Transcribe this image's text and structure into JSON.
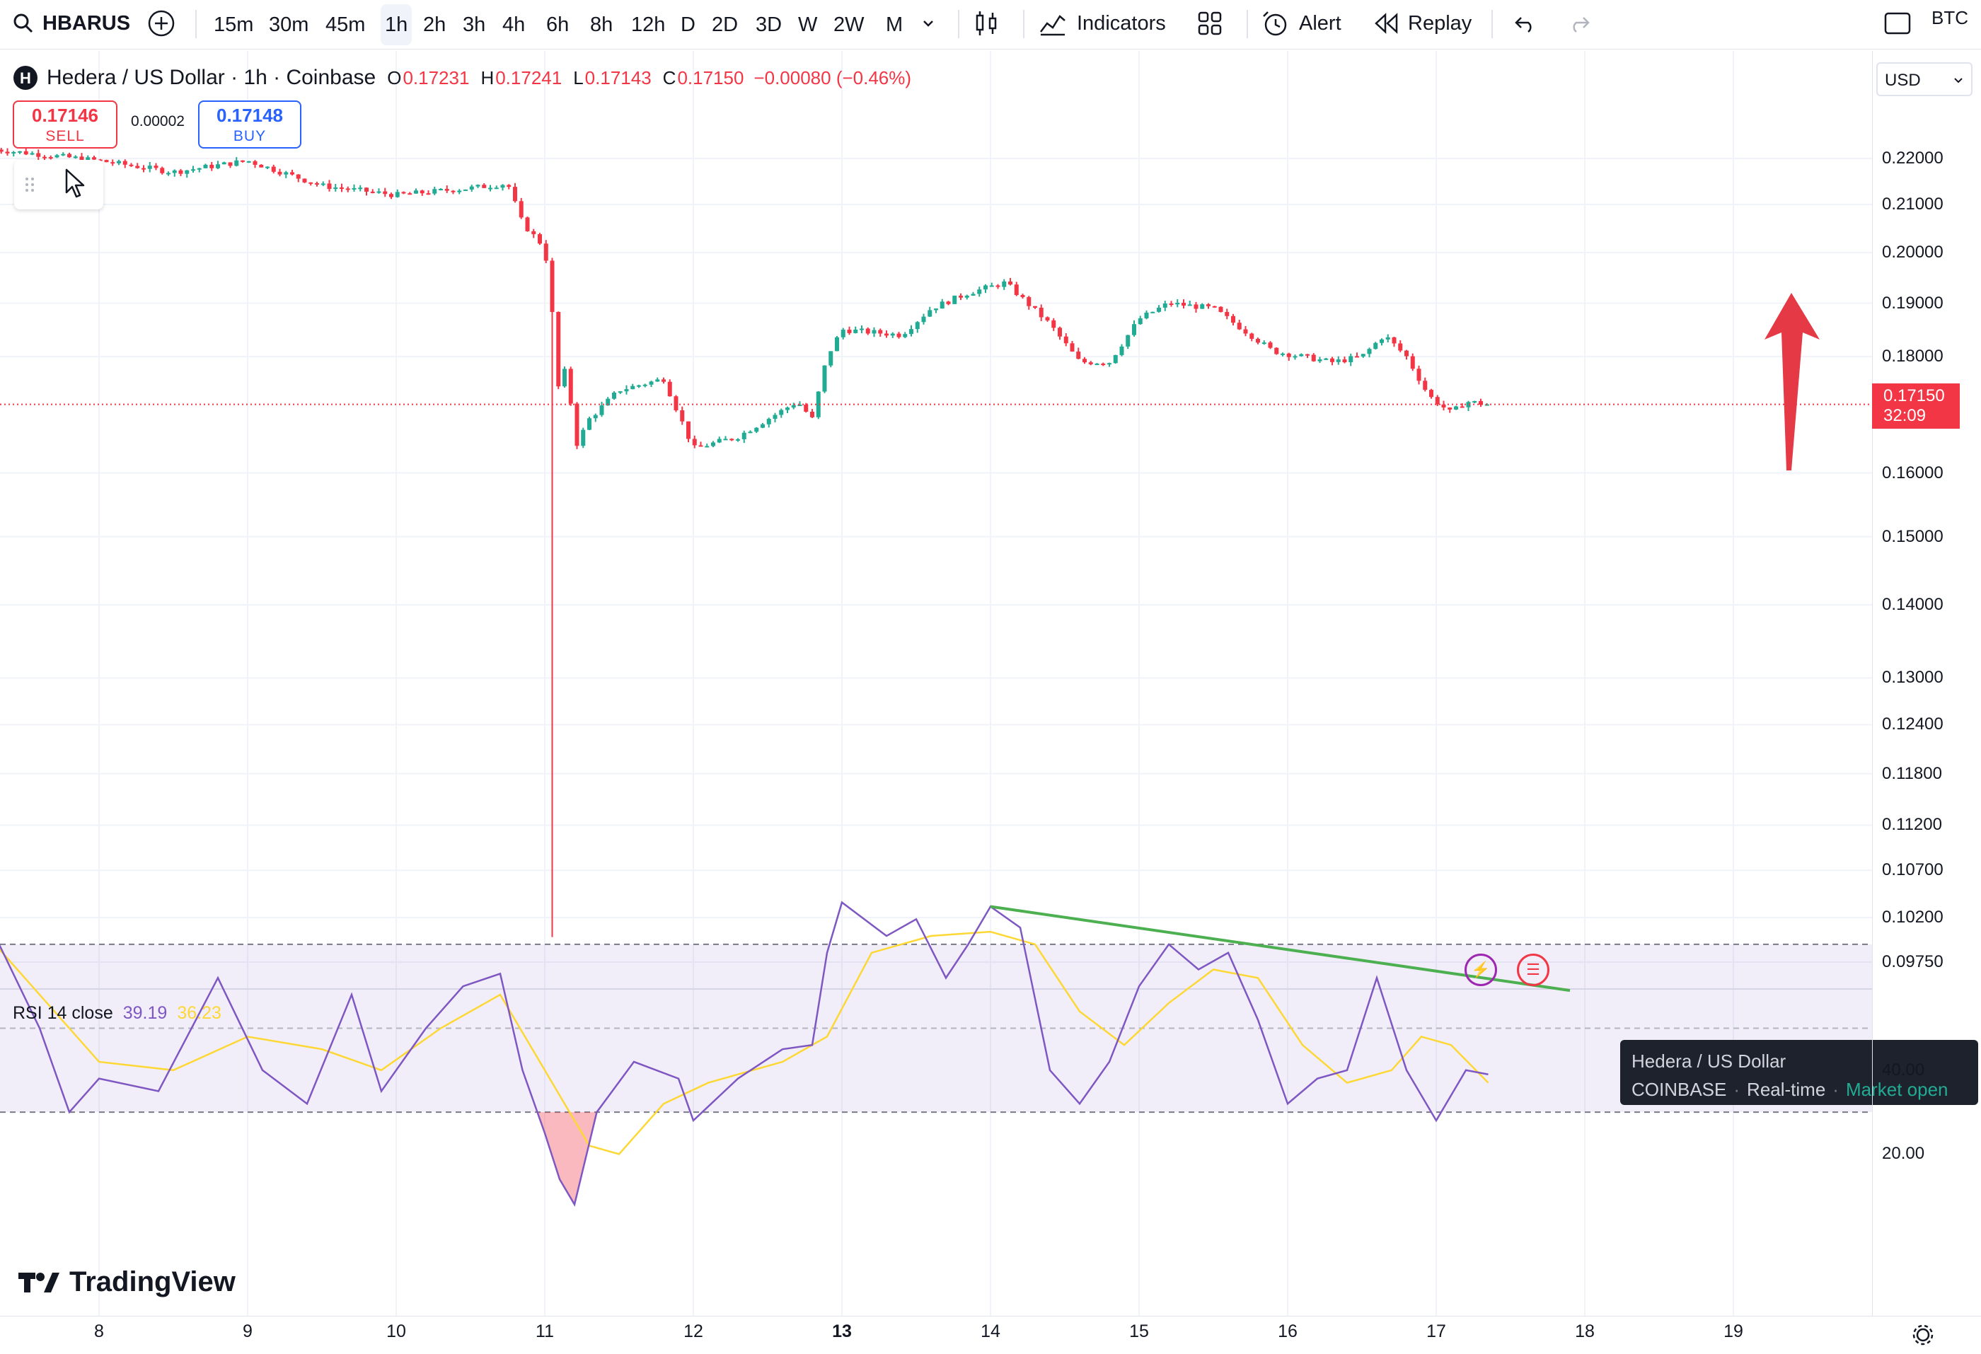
{
  "toolbar": {
    "symbol": "HBARUS",
    "intervals": [
      "15m",
      "30m",
      "45m",
      "1h",
      "2h",
      "3h",
      "4h",
      "6h",
      "8h",
      "12h",
      "D",
      "2D",
      "3D",
      "W",
      "2W",
      "M"
    ],
    "active_interval": "1h",
    "indicators_label": "Indicators",
    "alert_label": "Alert",
    "replay_label": "Replay",
    "right_symbol": "BTC"
  },
  "legend": {
    "logo_letter": "H",
    "title": "Hedera / US Dollar · 1h · Coinbase",
    "open_label": "O",
    "open": "0.17231",
    "high_label": "H",
    "high": "0.17241",
    "low_label": "L",
    "low": "0.17143",
    "close_label": "C",
    "close": "0.17150",
    "change": "−0.00080 (−0.46%)"
  },
  "trade": {
    "sell_price": "0.17146",
    "sell_label": "SELL",
    "spread": "0.00002",
    "buy_price": "0.17148",
    "buy_label": "BUY"
  },
  "rsi_legend": {
    "name": "RSI 14 close",
    "rsi_value": "39.19",
    "ma_value": "36.23"
  },
  "tooltip": {
    "title": "Hedera / US Dollar",
    "exchange": "COINBASE",
    "feed": "Real-time",
    "status": "Market open"
  },
  "price_scale": {
    "currency": "USD",
    "labels": [
      "0.22000",
      "0.21000",
      "0.20000",
      "0.19000",
      "0.18000",
      "0.16000",
      "0.15000",
      "0.14000",
      "0.13000",
      "0.12400",
      "0.11800",
      "0.11200",
      "0.10700",
      "0.10200",
      "0.09750"
    ],
    "current_price": "0.17150",
    "countdown": "32:09",
    "rsi_labels": [
      "40.00",
      "20.00"
    ]
  },
  "time_axis": {
    "labels": [
      "8",
      "9",
      "10",
      "11",
      "12",
      "13",
      "14",
      "15",
      "16",
      "17",
      "18",
      "19"
    ],
    "bold_label": "13"
  },
  "branding": {
    "name": "TradingView"
  },
  "colors": {
    "up": "#22ab94",
    "down": "#f23645",
    "rsi_line": "#7e57c2",
    "rsi_ma": "#fdd835",
    "trendline": "#4caf50",
    "arrow": "#e53945"
  },
  "chart_data": {
    "type": "candlestick",
    "interval": "1h",
    "x_range_days": [
      8,
      19
    ],
    "y_scale": "log",
    "ylim": [
      0.0975,
      0.225
    ],
    "close_path": [
      {
        "day": 7.3,
        "price": 0.222
      },
      {
        "day": 8.0,
        "price": 0.2195
      },
      {
        "day": 8.5,
        "price": 0.217
      },
      {
        "day": 9.0,
        "price": 0.2195
      },
      {
        "day": 9.5,
        "price": 0.214
      },
      {
        "day": 10.0,
        "price": 0.212
      },
      {
        "day": 10.5,
        "price": 0.2135
      },
      {
        "day": 10.75,
        "price": 0.2145
      },
      {
        "day": 10.85,
        "price": 0.206
      },
      {
        "day": 11.0,
        "price": 0.201
      },
      {
        "day": 11.05,
        "price": 0.188
      },
      {
        "day": 11.1,
        "price": 0.172
      },
      {
        "day": 11.15,
        "price": 0.18
      },
      {
        "day": 11.2,
        "price": 0.164
      },
      {
        "day": 11.3,
        "price": 0.169
      },
      {
        "day": 11.5,
        "price": 0.174
      },
      {
        "day": 11.8,
        "price": 0.176
      },
      {
        "day": 12.0,
        "price": 0.164
      },
      {
        "day": 12.3,
        "price": 0.166
      },
      {
        "day": 12.7,
        "price": 0.172
      },
      {
        "day": 12.8,
        "price": 0.169
      },
      {
        "day": 12.9,
        "price": 0.18
      },
      {
        "day": 13.0,
        "price": 0.185
      },
      {
        "day": 13.4,
        "price": 0.184
      },
      {
        "day": 13.6,
        "price": 0.189
      },
      {
        "day": 13.85,
        "price": 0.192
      },
      {
        "day": 14.1,
        "price": 0.194
      },
      {
        "day": 14.4,
        "price": 0.186
      },
      {
        "day": 14.6,
        "price": 0.179
      },
      {
        "day": 14.8,
        "price": 0.179
      },
      {
        "day": 15.0,
        "price": 0.187
      },
      {
        "day": 15.2,
        "price": 0.19
      },
      {
        "day": 15.5,
        "price": 0.189
      },
      {
        "day": 15.7,
        "price": 0.185
      },
      {
        "day": 15.9,
        "price": 0.181
      },
      {
        "day": 16.1,
        "price": 0.18
      },
      {
        "day": 16.3,
        "price": 0.179
      },
      {
        "day": 16.5,
        "price": 0.18
      },
      {
        "day": 16.65,
        "price": 0.184
      },
      {
        "day": 16.8,
        "price": 0.18
      },
      {
        "day": 16.95,
        "price": 0.173
      },
      {
        "day": 17.1,
        "price": 0.17
      },
      {
        "day": 17.2,
        "price": 0.172
      },
      {
        "day": 17.35,
        "price": 0.1715
      }
    ],
    "wick_low": {
      "day": 11.05,
      "price": 0.1
    },
    "rsi": {
      "length": 14,
      "current": 39.19,
      "ma_current": 36.23,
      "overbought": 70,
      "oversold": 30,
      "ylim": [
        0,
        90
      ],
      "points": [
        {
          "day": 7.3,
          "rsi": 72
        },
        {
          "day": 7.6,
          "rsi": 50
        },
        {
          "day": 7.8,
          "rsi": 30
        },
        {
          "day": 8.0,
          "rsi": 38
        },
        {
          "day": 8.4,
          "rsi": 35
        },
        {
          "day": 8.8,
          "rsi": 62
        },
        {
          "day": 9.1,
          "rsi": 40
        },
        {
          "day": 9.4,
          "rsi": 32
        },
        {
          "day": 9.7,
          "rsi": 58
        },
        {
          "day": 9.9,
          "rsi": 35
        },
        {
          "day": 10.2,
          "rsi": 50
        },
        {
          "day": 10.45,
          "rsi": 60
        },
        {
          "day": 10.7,
          "rsi": 63
        },
        {
          "day": 10.85,
          "rsi": 40
        },
        {
          "day": 11.0,
          "rsi": 25
        },
        {
          "day": 11.1,
          "rsi": 14
        },
        {
          "day": 11.2,
          "rsi": 8
        },
        {
          "day": 11.35,
          "rsi": 30
        },
        {
          "day": 11.6,
          "rsi": 42
        },
        {
          "day": 11.9,
          "rsi": 38
        },
        {
          "day": 12.0,
          "rsi": 28
        },
        {
          "day": 12.3,
          "rsi": 38
        },
        {
          "day": 12.6,
          "rsi": 45
        },
        {
          "day": 12.8,
          "rsi": 46
        },
        {
          "day": 12.9,
          "rsi": 68
        },
        {
          "day": 13.0,
          "rsi": 80
        },
        {
          "day": 13.3,
          "rsi": 72
        },
        {
          "day": 13.5,
          "rsi": 76
        },
        {
          "day": 13.7,
          "rsi": 62
        },
        {
          "day": 13.85,
          "rsi": 70
        },
        {
          "day": 14.0,
          "rsi": 79
        },
        {
          "day": 14.2,
          "rsi": 74
        },
        {
          "day": 14.4,
          "rsi": 40
        },
        {
          "day": 14.6,
          "rsi": 32
        },
        {
          "day": 14.8,
          "rsi": 42
        },
        {
          "day": 15.0,
          "rsi": 60
        },
        {
          "day": 15.2,
          "rsi": 70
        },
        {
          "day": 15.4,
          "rsi": 64
        },
        {
          "day": 15.6,
          "rsi": 68
        },
        {
          "day": 15.8,
          "rsi": 52
        },
        {
          "day": 16.0,
          "rsi": 32
        },
        {
          "day": 16.2,
          "rsi": 38
        },
        {
          "day": 16.4,
          "rsi": 40
        },
        {
          "day": 16.6,
          "rsi": 62
        },
        {
          "day": 16.8,
          "rsi": 40
        },
        {
          "day": 17.0,
          "rsi": 28
        },
        {
          "day": 17.2,
          "rsi": 40
        },
        {
          "day": 17.35,
          "rsi": 39
        }
      ],
      "ma_points": [
        {
          "day": 7.3,
          "rsi": 70
        },
        {
          "day": 7.6,
          "rsi": 58
        },
        {
          "day": 8.0,
          "rsi": 42
        },
        {
          "day": 8.5,
          "rsi": 40
        },
        {
          "day": 9.0,
          "rsi": 48
        },
        {
          "day": 9.5,
          "rsi": 45
        },
        {
          "day": 9.9,
          "rsi": 40
        },
        {
          "day": 10.3,
          "rsi": 50
        },
        {
          "day": 10.7,
          "rsi": 58
        },
        {
          "day": 11.0,
          "rsi": 40
        },
        {
          "day": 11.3,
          "rsi": 22
        },
        {
          "day": 11.5,
          "rsi": 20
        },
        {
          "day": 11.8,
          "rsi": 32
        },
        {
          "day": 12.1,
          "rsi": 37
        },
        {
          "day": 12.6,
          "rsi": 42
        },
        {
          "day": 12.9,
          "rsi": 48
        },
        {
          "day": 13.2,
          "rsi": 68
        },
        {
          "day": 13.6,
          "rsi": 72
        },
        {
          "day": 14.0,
          "rsi": 73
        },
        {
          "day": 14.3,
          "rsi": 70
        },
        {
          "day": 14.6,
          "rsi": 54
        },
        {
          "day": 14.9,
          "rsi": 46
        },
        {
          "day": 15.2,
          "rsi": 56
        },
        {
          "day": 15.5,
          "rsi": 64
        },
        {
          "day": 15.8,
          "rsi": 62
        },
        {
          "day": 16.1,
          "rsi": 46
        },
        {
          "day": 16.4,
          "rsi": 37
        },
        {
          "day": 16.7,
          "rsi": 40
        },
        {
          "day": 16.9,
          "rsi": 48
        },
        {
          "day": 17.1,
          "rsi": 46
        },
        {
          "day": 17.35,
          "rsi": 37
        }
      ],
      "trendline": [
        {
          "day": 14.0,
          "rsi": 79
        },
        {
          "day": 17.9,
          "rsi": 59
        }
      ]
    }
  }
}
